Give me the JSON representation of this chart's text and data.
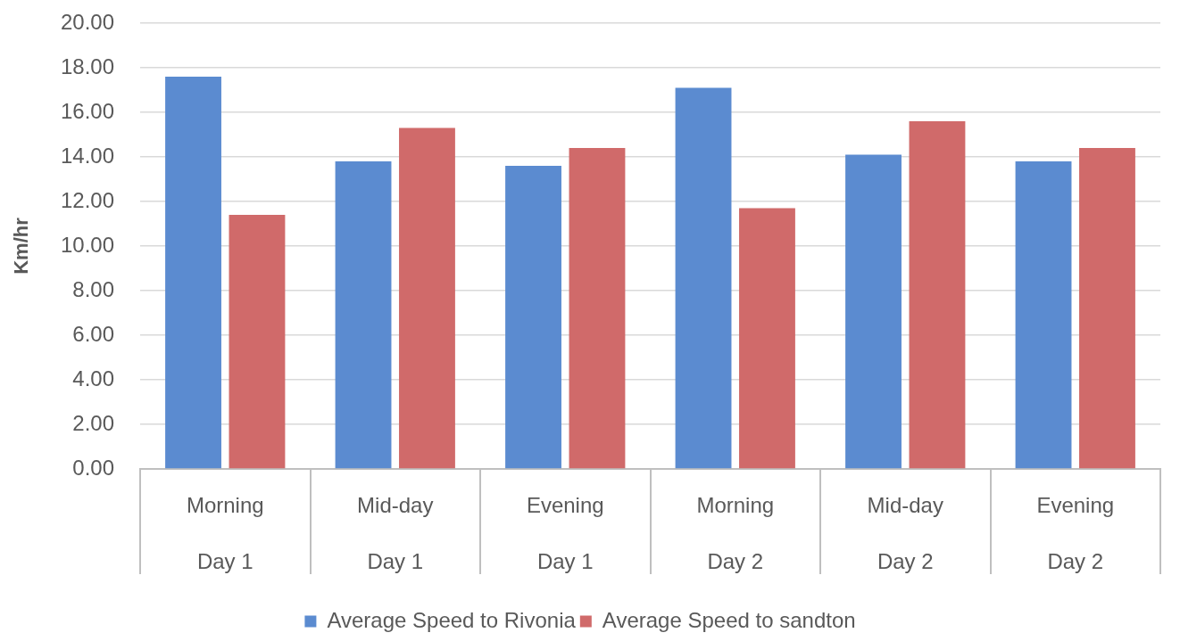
{
  "chart_data": {
    "type": "bar",
    "ylabel": "Km/hr",
    "categories": [
      "Morning\nDay 1",
      "Mid-day\nDay 1",
      "Evening\nDay 1",
      "Morning\nDay 2",
      "Mid-day\nDay 2",
      "Evening\nDay 2"
    ],
    "series": [
      {
        "name": "Average Speed to Rivonia",
        "color": "#5b8bd0",
        "values": [
          17.6,
          13.8,
          13.6,
          17.1,
          14.1,
          13.8
        ]
      },
      {
        "name": "Average Speed to sandton",
        "color": "#d06a6a",
        "values": [
          11.4,
          15.3,
          14.4,
          11.7,
          15.6,
          14.4
        ]
      }
    ],
    "ylim": [
      0,
      20
    ],
    "yticks": [
      {
        "value": 0,
        "label": "0.00"
      },
      {
        "value": 2,
        "label": "2.00"
      },
      {
        "value": 4,
        "label": "4.00"
      },
      {
        "value": 6,
        "label": "6.00"
      },
      {
        "value": 8,
        "label": "8.00"
      },
      {
        "value": 10,
        "label": "10.00"
      },
      {
        "value": 12,
        "label": "12.00"
      },
      {
        "value": 14,
        "label": "14.00"
      },
      {
        "value": 16,
        "label": "16.00"
      },
      {
        "value": 18,
        "label": "18.00"
      },
      {
        "value": 20,
        "label": "20.00"
      }
    ],
    "grid": "y",
    "legend": "bottom"
  }
}
